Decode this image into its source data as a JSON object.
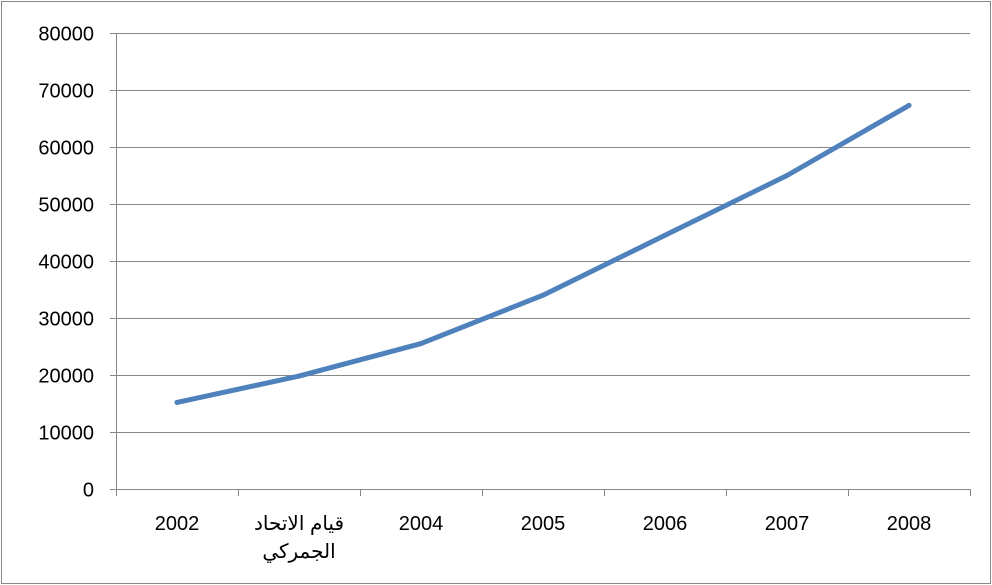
{
  "chart_data": {
    "type": "line",
    "categories": [
      "2002",
      "قيام الاتحاد الجمركي",
      "2004",
      "2005",
      "2006",
      "2007",
      "2008"
    ],
    "category_lines": [
      [
        "2002"
      ],
      [
        "قيام الاتحاد",
        "الجمركي"
      ],
      [
        "2004"
      ],
      [
        "2005"
      ],
      [
        "2006"
      ],
      [
        "2007"
      ],
      [
        "2008"
      ]
    ],
    "series": [
      {
        "values": [
          15200,
          19800,
          25500,
          34000,
          44500,
          55000,
          67300
        ]
      }
    ],
    "title": "",
    "xlabel": "",
    "ylabel": "",
    "ylim": [
      0,
      80000
    ],
    "yticks": [
      0,
      10000,
      20000,
      30000,
      40000,
      50000,
      60000,
      70000,
      80000
    ],
    "grid": true,
    "legend": "none",
    "colors": {
      "line": "#4f81bd",
      "grid": "#868686",
      "axis": "#868686",
      "border": "#868686"
    }
  }
}
